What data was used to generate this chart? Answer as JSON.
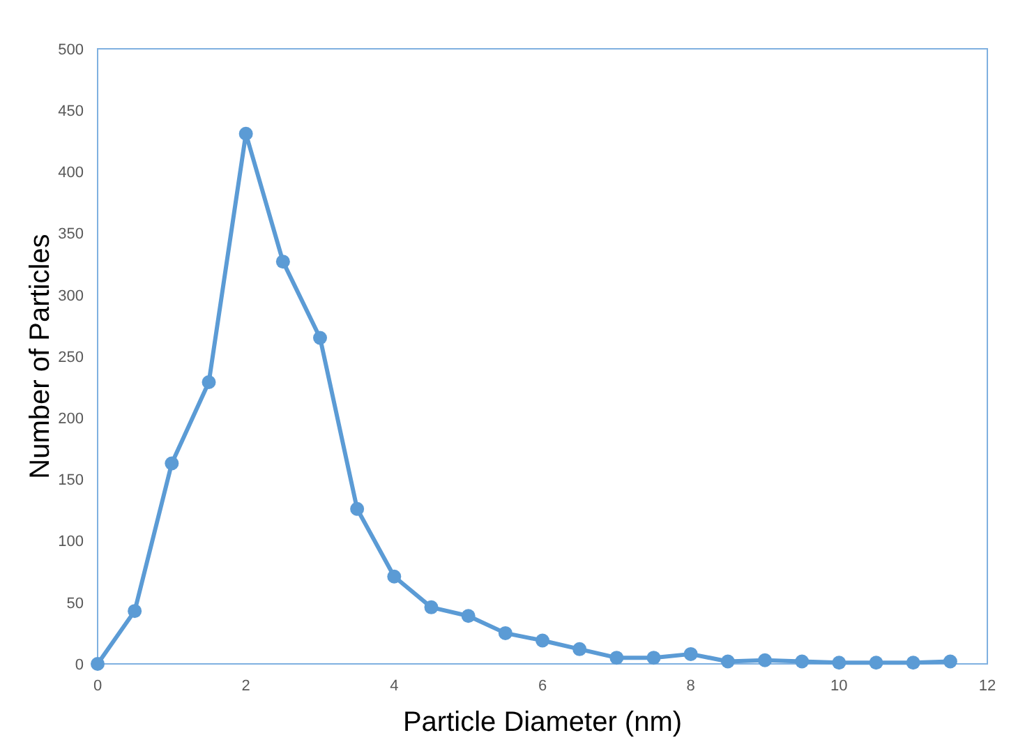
{
  "chart_data": {
    "type": "line",
    "xlabel": "Particle Diameter (nm)",
    "ylabel": "Number of Particles",
    "x": [
      0,
      0.5,
      1,
      1.5,
      2,
      2.5,
      3,
      3.5,
      4,
      4.5,
      5,
      5.5,
      6,
      6.5,
      7,
      7.5,
      8,
      8.5,
      9,
      9.5,
      10,
      10.5,
      11,
      11.5
    ],
    "series": [
      {
        "color": "#5b9bd5",
        "values": [
          0,
          43,
          163,
          229,
          431,
          327,
          265,
          126,
          71,
          46,
          39,
          25,
          19,
          12,
          5,
          5,
          8,
          2,
          3,
          2,
          1,
          1,
          1,
          2
        ]
      }
    ],
    "xlim": [
      0,
      12
    ],
    "xticks": [
      0,
      2,
      4,
      6,
      8,
      10,
      12
    ],
    "ylim": [
      0,
      500
    ],
    "yticks": [
      0,
      50,
      100,
      150,
      200,
      250,
      300,
      350,
      400,
      450,
      500
    ],
    "marker": "circle",
    "line_style": "solid"
  }
}
